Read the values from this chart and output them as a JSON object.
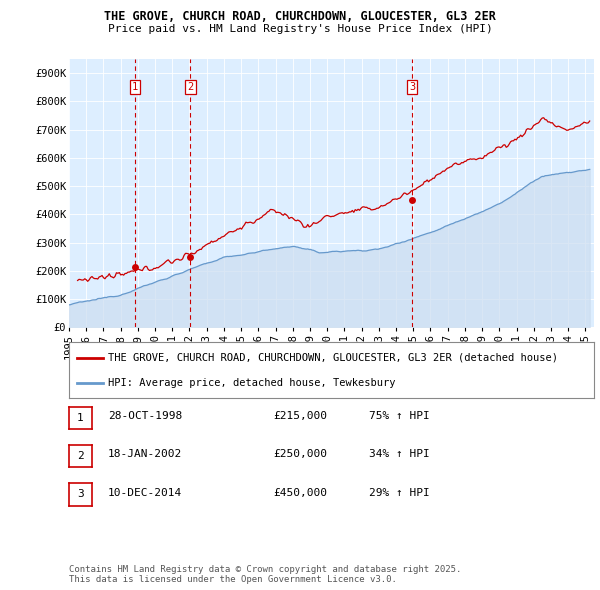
{
  "title_line1": "THE GROVE, CHURCH ROAD, CHURCHDOWN, GLOUCESTER, GL3 2ER",
  "title_line2": "Price paid vs. HM Land Registry's House Price Index (HPI)",
  "ylim": [
    0,
    950000
  ],
  "yticks": [
    0,
    100000,
    200000,
    300000,
    400000,
    500000,
    600000,
    700000,
    800000,
    900000
  ],
  "ytick_labels": [
    "£0",
    "£100K",
    "£200K",
    "£300K",
    "£400K",
    "£500K",
    "£600K",
    "£700K",
    "£800K",
    "£900K"
  ],
  "xmin": 1995.0,
  "xmax": 2025.5,
  "bg_color": "#ddeeff",
  "grid_color": "#c8d8e8",
  "red_line_color": "#cc0000",
  "blue_line_color": "#6699cc",
  "blue_fill_color": "#ccddf0",
  "vline_color": "#cc0000",
  "sale_dates": [
    1998.82,
    2002.05,
    2014.94
  ],
  "sale_prices": [
    215000,
    250000,
    450000
  ],
  "sale_labels": [
    "1",
    "2",
    "3"
  ],
  "legend_label_red": "THE GROVE, CHURCH ROAD, CHURCHDOWN, GLOUCESTER, GL3 2ER (detached house)",
  "legend_label_blue": "HPI: Average price, detached house, Tewkesbury",
  "table_data": [
    [
      "1",
      "28-OCT-1998",
      "£215,000",
      "75% ↑ HPI"
    ],
    [
      "2",
      "18-JAN-2002",
      "£250,000",
      "34% ↑ HPI"
    ],
    [
      "3",
      "10-DEC-2014",
      "£450,000",
      "29% ↑ HPI"
    ]
  ],
  "footer_text": "Contains HM Land Registry data © Crown copyright and database right 2025.\nThis data is licensed under the Open Government Licence v3.0.",
  "title_fontsize": 8.5,
  "tick_fontsize": 7.5,
  "legend_fontsize": 7.5,
  "table_fontsize": 8,
  "footer_fontsize": 6.5
}
